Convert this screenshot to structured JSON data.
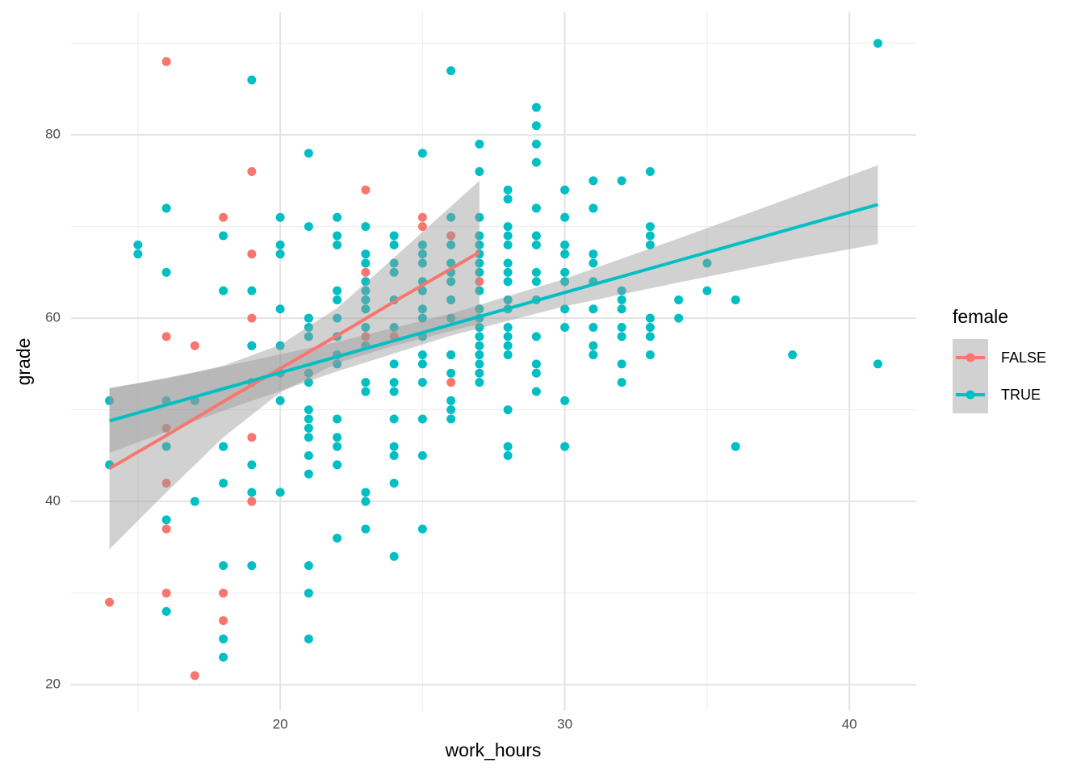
{
  "chart_data": {
    "type": "scatter",
    "x_label": "work_hours",
    "y_label": "grade",
    "legend_title": "female",
    "legend_position": "right",
    "grid": true,
    "xlim": [
      12.65,
      42.35
    ],
    "ylim": [
      17.2,
      93.4
    ],
    "xticks": [
      20,
      30,
      40
    ],
    "yticks": [
      20,
      40,
      60,
      80
    ],
    "x_minor_ticks": [
      15,
      25,
      35
    ],
    "y_minor_ticks": [
      30,
      50,
      70,
      90
    ],
    "band_color": "#999999",
    "series": [
      {
        "name": "FALSE",
        "color": "#F8766D",
        "x": [
          14,
          16,
          16,
          16,
          16,
          16,
          16,
          17,
          17,
          18,
          18,
          18,
          19,
          19,
          19,
          19,
          19,
          19,
          21,
          23,
          23,
          23,
          24,
          25,
          25,
          26,
          26,
          26,
          27
        ],
        "values": [
          29,
          88,
          58,
          48,
          42,
          37,
          30,
          57,
          21,
          71,
          30,
          27,
          76,
          67,
          60,
          57,
          47,
          40,
          60,
          74,
          65,
          58,
          58,
          71,
          70,
          69,
          56,
          53,
          64
        ],
        "fit": {
          "x": [
            14,
            16,
            18,
            20,
            22,
            24,
            26,
            27
          ],
          "values": [
            43.6,
            47.2,
            50.9,
            54.5,
            58.1,
            61.8,
            65.4,
            67.2
          ],
          "lower": [
            34.8,
            41.0,
            47.0,
            51.9,
            55.1,
            57.0,
            58.6,
            59.4
          ],
          "upper": [
            52.4,
            53.4,
            54.8,
            57.1,
            61.1,
            66.6,
            72.2,
            75.0
          ]
        }
      },
      {
        "name": "TRUE",
        "color": "#00BFC4",
        "x": [
          14,
          14,
          15,
          15,
          16,
          16,
          16,
          16,
          16,
          16,
          17,
          17,
          18,
          18,
          18,
          18,
          18,
          18,
          18,
          19,
          19,
          19,
          19,
          19,
          19,
          19,
          20,
          20,
          20,
          20,
          20,
          20,
          20,
          20,
          21,
          21,
          21,
          21,
          21,
          21,
          21,
          21,
          21,
          21,
          21,
          21,
          21,
          21,
          21,
          21,
          22,
          22,
          22,
          22,
          22,
          22,
          22,
          22,
          22,
          22,
          22,
          22,
          22,
          22,
          23,
          23,
          23,
          23,
          23,
          23,
          23,
          23,
          23,
          23,
          23,
          23,
          23,
          23,
          24,
          24,
          24,
          24,
          24,
          24,
          24,
          24,
          24,
          24,
          24,
          24,
          24,
          24,
          25,
          25,
          25,
          25,
          25,
          25,
          25,
          25,
          25,
          25,
          25,
          25,
          25,
          25,
          25,
          26,
          26,
          26,
          26,
          26,
          26,
          26,
          26,
          26,
          26,
          26,
          26,
          26,
          27,
          27,
          27,
          27,
          27,
          27,
          27,
          27,
          27,
          27,
          27,
          27,
          27,
          27,
          27,
          27,
          27,
          27,
          28,
          28,
          28,
          28,
          28,
          28,
          28,
          28,
          28,
          28,
          28,
          28,
          28,
          28,
          28,
          28,
          28,
          29,
          29,
          29,
          29,
          29,
          29,
          29,
          29,
          29,
          29,
          29,
          29,
          29,
          29,
          30,
          30,
          30,
          30,
          30,
          30,
          30,
          30,
          30,
          30,
          31,
          31,
          31,
          31,
          31,
          31,
          31,
          31,
          31,
          32,
          32,
          32,
          32,
          32,
          32,
          32,
          32,
          33,
          33,
          33,
          33,
          33,
          33,
          33,
          33,
          34,
          34,
          35,
          35,
          36,
          36,
          38,
          41,
          41
        ],
        "values": [
          51,
          44,
          68,
          67,
          72,
          65,
          51,
          46,
          38,
          28,
          51,
          40,
          69,
          63,
          46,
          42,
          33,
          25,
          23,
          86,
          63,
          57,
          53,
          44,
          41,
          33,
          71,
          68,
          67,
          61,
          57,
          54,
          51,
          41,
          78,
          70,
          60,
          59,
          58,
          54,
          53,
          50,
          49,
          48,
          47,
          45,
          43,
          33,
          30,
          25,
          71,
          69,
          68,
          63,
          62,
          60,
          58,
          56,
          55,
          49,
          47,
          46,
          44,
          36,
          70,
          67,
          66,
          64,
          63,
          62,
          61,
          59,
          57,
          53,
          52,
          41,
          40,
          37,
          69,
          68,
          66,
          65,
          62,
          59,
          55,
          53,
          52,
          49,
          46,
          45,
          42,
          34,
          78,
          68,
          67,
          66,
          64,
          63,
          61,
          60,
          58,
          56,
          55,
          53,
          49,
          45,
          37,
          87,
          71,
          68,
          66,
          65,
          64,
          62,
          60,
          56,
          54,
          51,
          50,
          49,
          79,
          76,
          71,
          69,
          68,
          67,
          66,
          65,
          63,
          61,
          60,
          59,
          58,
          57,
          56,
          55,
          54,
          53,
          74,
          73,
          70,
          69,
          68,
          66,
          65,
          64,
          62,
          61,
          59,
          58,
          57,
          56,
          50,
          46,
          45,
          83,
          81,
          79,
          77,
          72,
          69,
          68,
          65,
          64,
          62,
          58,
          55,
          54,
          52,
          74,
          71,
          68,
          67,
          65,
          64,
          61,
          59,
          51,
          46,
          75,
          72,
          67,
          66,
          64,
          61,
          59,
          57,
          56,
          75,
          63,
          62,
          61,
          59,
          58,
          55,
          53,
          76,
          70,
          69,
          68,
          60,
          59,
          58,
          56,
          62,
          60,
          66,
          63,
          62,
          46,
          56,
          90,
          55
        ],
        "fit": {
          "x": [
            14,
            18,
            22,
            26,
            30,
            34,
            38,
            41
          ],
          "values": [
            48.8,
            52.3,
            55.8,
            59.3,
            62.8,
            66.3,
            69.8,
            72.4
          ],
          "lower": [
            45.3,
            49.9,
            54.2,
            58.1,
            61.3,
            63.9,
            66.4,
            68.1
          ],
          "upper": [
            52.3,
            54.7,
            57.4,
            60.5,
            64.3,
            68.7,
            73.2,
            76.7
          ]
        }
      }
    ]
  }
}
